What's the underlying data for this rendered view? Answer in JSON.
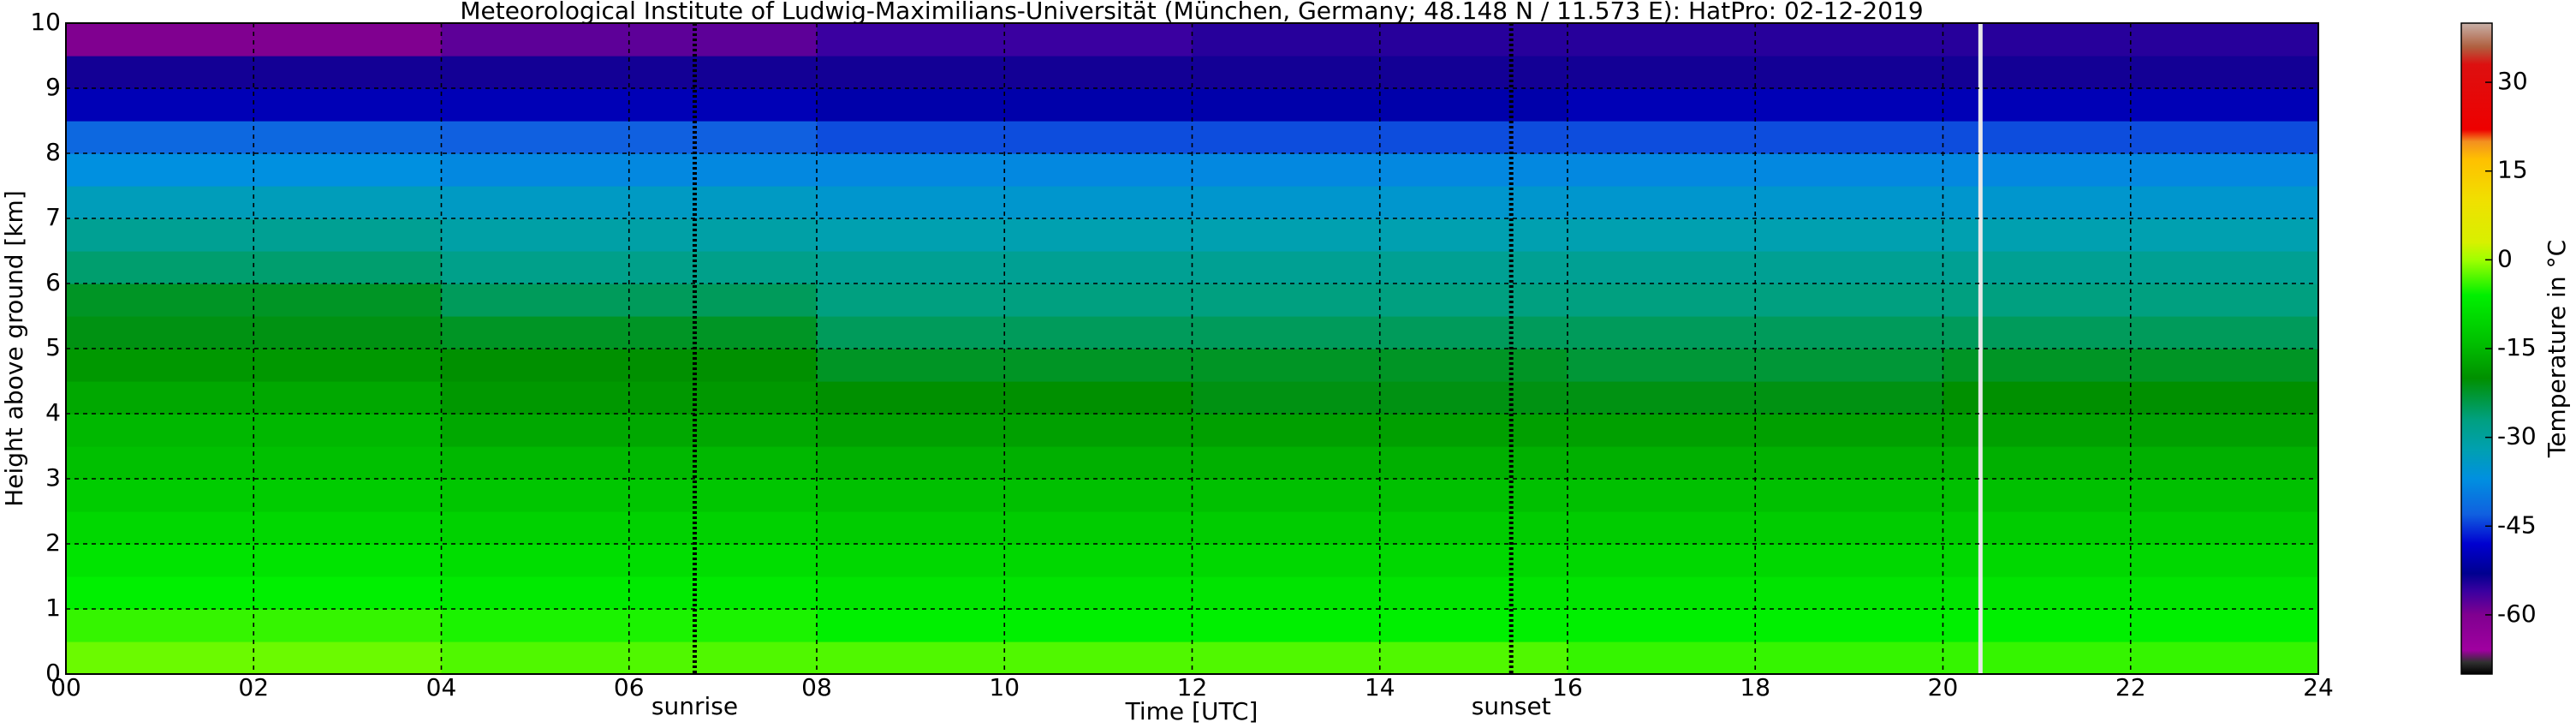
{
  "chart_data": {
    "type": "heatmap",
    "title": "Meteorological Institute of Ludwig-Maximilians-Universität (München, Germany; 48.148 N / 11.573 E):    HatPro: 02-12-2019",
    "xlabel": "Time [UTC]",
    "ylabel": "Height above ground [km]",
    "colorbar_label": "Temperature in °C",
    "x_edges": [
      0,
      4,
      8,
      12,
      16,
      20,
      24
    ],
    "y_edges": [
      0,
      0.5,
      1,
      1.5,
      2,
      2.5,
      3,
      3.5,
      4,
      4.5,
      5,
      5.5,
      6,
      6.5,
      7,
      7.5,
      8,
      8.5,
      9,
      9.5,
      10
    ],
    "z": [
      [
        -2,
        -4,
        -6,
        -8,
        -10,
        -12,
        -14,
        -15,
        -17,
        -19,
        -21,
        -22,
        -26,
        -29,
        -33,
        -37,
        -42,
        -50,
        -54,
        -60
      ],
      [
        -3,
        -5,
        -7,
        -9,
        -11,
        -13,
        -15,
        -17,
        -19,
        -20,
        -22,
        -25,
        -28,
        -31,
        -34,
        -38,
        -43,
        -50,
        -54,
        -58
      ],
      [
        -3,
        -6,
        -8,
        -10,
        -12,
        -14,
        -16,
        -18,
        -20,
        -22,
        -25,
        -27,
        -29,
        -32,
        -35,
        -38,
        -44,
        -51,
        -54,
        -56
      ],
      [
        -3,
        -6,
        -8,
        -10,
        -12,
        -14,
        -16,
        -18,
        -21,
        -22,
        -25,
        -27,
        -29,
        -32,
        -35,
        -38,
        -44,
        -51,
        -54,
        -55
      ],
      [
        -4,
        -6,
        -8,
        -10,
        -12,
        -14,
        -16,
        -18,
        -21,
        -23,
        -25,
        -27,
        -29,
        -32,
        -35,
        -38,
        -44,
        -50,
        -54,
        -55
      ],
      [
        -4,
        -6,
        -8,
        -10,
        -12,
        -14,
        -16,
        -18,
        -20,
        -22,
        -25,
        -27,
        -29,
        -32,
        -35,
        -38,
        -44,
        -50,
        -54,
        -55
      ]
    ],
    "xlim": [
      0,
      24
    ],
    "xticks": [
      {
        "value": 0,
        "label": "00"
      },
      {
        "value": 2,
        "label": "02"
      },
      {
        "value": 4,
        "label": "04"
      },
      {
        "value": 6,
        "label": "06"
      },
      {
        "value": 8,
        "label": "08"
      },
      {
        "value": 10,
        "label": "10"
      },
      {
        "value": 12,
        "label": "12"
      },
      {
        "value": 14,
        "label": "14"
      },
      {
        "value": 16,
        "label": "16"
      },
      {
        "value": 18,
        "label": "18"
      },
      {
        "value": 20,
        "label": "20"
      },
      {
        "value": 22,
        "label": "22"
      },
      {
        "value": 24,
        "label": "24"
      }
    ],
    "ylim": [
      0,
      10
    ],
    "yticks": [
      0,
      1,
      2,
      3,
      4,
      5,
      6,
      7,
      8,
      9,
      10
    ],
    "clim": [
      -70,
      40
    ],
    "cticks": [
      -60,
      -45,
      -30,
      -15,
      0,
      15,
      30
    ],
    "colorscale": [
      {
        "value": -70,
        "color": "#000000"
      },
      {
        "value": -68,
        "color": "#303030"
      },
      {
        "value": -66,
        "color": "#a000a0"
      },
      {
        "value": -60,
        "color": "#800090"
      },
      {
        "value": -56,
        "color": "#3a00a0"
      },
      {
        "value": -53,
        "color": "#000090"
      },
      {
        "value": -48,
        "color": "#0000d0"
      },
      {
        "value": -43,
        "color": "#1060e0"
      },
      {
        "value": -37,
        "color": "#0090e0"
      },
      {
        "value": -32,
        "color": "#00a0b0"
      },
      {
        "value": -27,
        "color": "#00a080"
      },
      {
        "value": -20,
        "color": "#009000"
      },
      {
        "value": -14,
        "color": "#00c000"
      },
      {
        "value": -6,
        "color": "#00f000"
      },
      {
        "value": 0,
        "color": "#a0ff00"
      },
      {
        "value": 3,
        "color": "#d8f000"
      },
      {
        "value": 10,
        "color": "#f0e000"
      },
      {
        "value": 17,
        "color": "#ffc000"
      },
      {
        "value": 20,
        "color": "#f39020"
      },
      {
        "value": 22,
        "color": "#ee0000"
      },
      {
        "value": 33,
        "color": "#dd1010"
      },
      {
        "value": 36,
        "color": "#b06040"
      },
      {
        "value": 40,
        "color": "#c8b0a8"
      }
    ],
    "grid": true,
    "annotations": [
      {
        "text": "sunrise",
        "x": 6.7
      },
      {
        "text": "sunset",
        "x": 15.4
      }
    ],
    "gap_x": 20.4
  }
}
